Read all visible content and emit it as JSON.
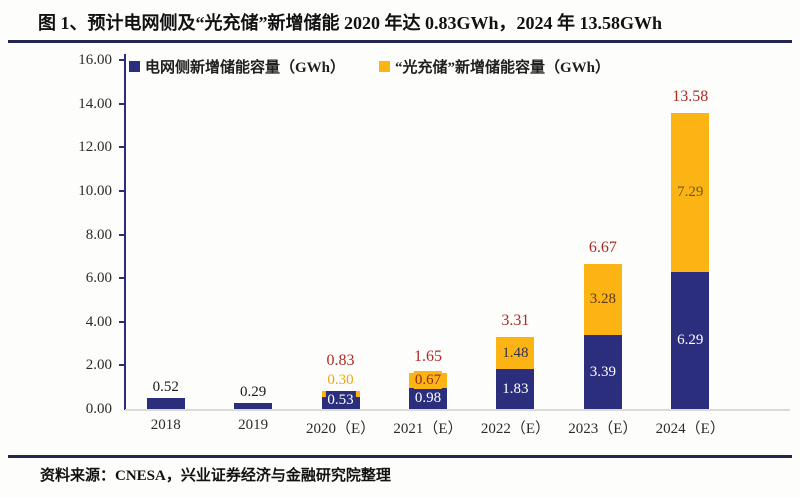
{
  "figure": {
    "title": "图 1、预计电网侧及“光充储”新增储能 2020 年达 0.83GWh，2024 年 13.58GWh",
    "source": "资料来源：CNESA，兴业证券经济与金融研究院整理"
  },
  "colors": {
    "grid_series": "#2a2e7d",
    "pv_series": "#fcb415",
    "total_label": "#ae2a24",
    "axis": "#2a2e7d",
    "rule": "#23264e",
    "baseline": "#dadada",
    "text": "#2b2b2b"
  },
  "chart_data": {
    "type": "bar",
    "stacked": true,
    "title": "图 1、预计电网侧及“光充储”新增储能 2020 年达 0.83GWh，2024 年 13.58GWh",
    "categories": [
      "2018",
      "2019",
      "2020（E）",
      "2021（E）",
      "2022（E）",
      "2023（E）",
      "2024（E）"
    ],
    "series": [
      {
        "name": "电网侧新增储能容量（GWh）",
        "color": "#2a2e7d",
        "values": [
          0.52,
          0.29,
          0.53,
          0.98,
          1.83,
          3.39,
          6.29
        ]
      },
      {
        "name": "“光充储”新增储能容量（GWh）",
        "color": "#fcb415",
        "values": [
          0,
          0,
          0.3,
          0.67,
          1.48,
          3.28,
          7.29
        ]
      }
    ],
    "totals": [
      0.52,
      0.29,
      0.83,
      1.65,
      3.31,
      6.67,
      13.58
    ],
    "ylim": [
      0,
      16
    ],
    "ytick_step": 2,
    "yticks": [
      "0.00",
      "2.00",
      "4.00",
      "6.00",
      "8.00",
      "10.00",
      "12.00",
      "14.00",
      "16.00"
    ],
    "legend_position": "top",
    "grid": "off",
    "bar_labels": [
      {
        "labels": [
          {
            "text": "0.52",
            "place": "above",
            "color": "#1a1a1a"
          }
        ]
      },
      {
        "labels": [
          {
            "text": "0.29",
            "place": "above",
            "color": "#1a1a1a"
          }
        ]
      },
      {
        "labels": [
          {
            "text": "0.53",
            "place": "grid",
            "color": "#ffffff"
          },
          {
            "text": "0.30",
            "place": "above",
            "color": "#f2a50c"
          },
          {
            "text": "0.83",
            "place": "total",
            "color": "#ae2a24"
          }
        ]
      },
      {
        "labels": [
          {
            "text": "0.98",
            "place": "grid",
            "color": "#ffffff"
          },
          {
            "text": "0.67",
            "place": "pv",
            "color": "#8e2b1b"
          },
          {
            "text": "1.65",
            "place": "total",
            "color": "#ae2a24"
          }
        ]
      },
      {
        "labels": [
          {
            "text": "1.83",
            "place": "grid",
            "color": "#ffffff"
          },
          {
            "text": "1.48",
            "place": "pv",
            "color": "#34324f"
          },
          {
            "text": "3.31",
            "place": "total",
            "color": "#ae2a24"
          }
        ]
      },
      {
        "labels": [
          {
            "text": "3.39",
            "place": "grid",
            "color": "#ffffff"
          },
          {
            "text": "3.28",
            "place": "pv",
            "color": "#5c3a14"
          },
          {
            "text": "6.67",
            "place": "total",
            "color": "#ae2a24"
          }
        ]
      },
      {
        "labels": [
          {
            "text": "6.29",
            "place": "grid",
            "color": "#ffffff"
          },
          {
            "text": "7.29",
            "place": "pv",
            "color": "#6e5a1e"
          },
          {
            "text": "13.58",
            "place": "total",
            "color": "#ae2a24"
          }
        ]
      }
    ]
  }
}
